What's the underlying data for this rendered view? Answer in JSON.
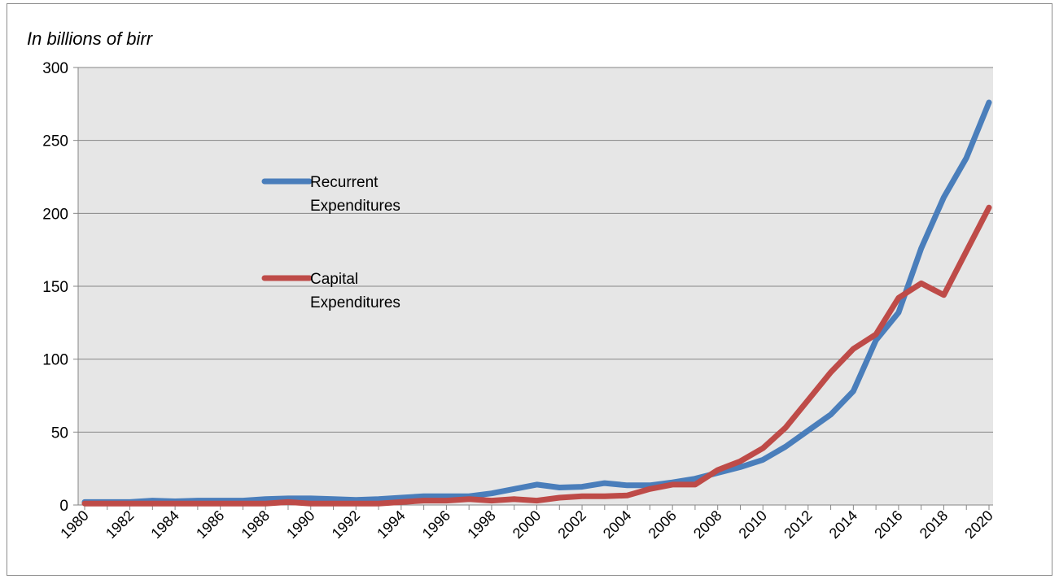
{
  "chart_data": {
    "type": "line",
    "title": "",
    "ylabel": "In billions of birr",
    "xlabel": "",
    "ylim": [
      0,
      300
    ],
    "yticks": [
      0,
      50,
      100,
      150,
      200,
      250,
      300
    ],
    "x": [
      1980,
      1981,
      1982,
      1983,
      1984,
      1985,
      1986,
      1987,
      1988,
      1989,
      1990,
      1991,
      1992,
      1993,
      1994,
      1995,
      1996,
      1997,
      1998,
      1999,
      2000,
      2001,
      2002,
      2003,
      2004,
      2005,
      2006,
      2007,
      2008,
      2009,
      2010,
      2011,
      2012,
      2013,
      2014,
      2015,
      2016,
      2017,
      2018,
      2019,
      2020
    ],
    "xtick_labels": [
      "1980",
      "1982",
      "1984",
      "1986",
      "1988",
      "1990",
      "1992",
      "1994",
      "1996",
      "1998",
      "2000",
      "2002",
      "2004",
      "2006",
      "2008",
      "2010",
      "2012",
      "2014",
      "2016",
      "2018",
      "2020"
    ],
    "grid": true,
    "legend_position": "upper-left-inside",
    "plot_background": "#e6e6e6",
    "series": [
      {
        "name": "Recurrent Expenditures",
        "color": "#4a7ebb",
        "values": [
          2,
          2,
          2,
          3,
          2.5,
          3,
          3,
          3,
          4,
          4.5,
          4.5,
          4,
          3.5,
          4,
          5,
          6,
          6,
          6,
          8,
          11,
          14,
          12,
          12.5,
          15,
          13.5,
          13.5,
          15.5,
          18,
          22,
          26,
          31,
          40,
          51,
          62,
          78,
          113,
          132,
          176,
          211,
          238,
          276
        ]
      },
      {
        "name": "Capital Expenditures",
        "color": "#be4b48",
        "values": [
          1,
          1,
          1,
          1,
          1,
          1,
          1,
          1,
          1,
          2,
          1,
          1,
          1,
          1,
          2,
          3,
          3,
          4,
          3,
          4,
          3,
          5,
          6,
          6,
          6.5,
          11,
          14,
          14,
          24,
          30,
          39,
          53,
          72,
          91,
          107,
          117,
          142,
          152,
          144,
          174,
          204
        ]
      }
    ]
  }
}
